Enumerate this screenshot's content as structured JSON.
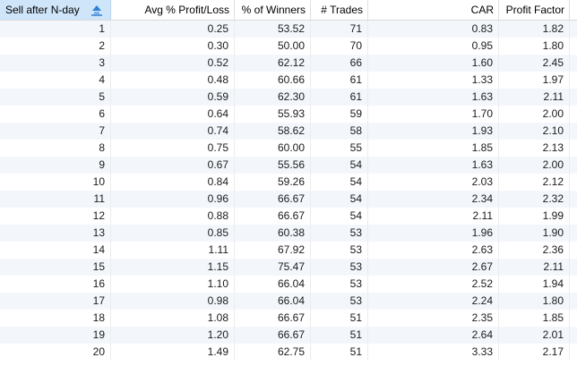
{
  "table": {
    "columns": [
      "Sell after N-day",
      "Avg % Profit/Loss",
      "% of Winners",
      "# Trades",
      "CAR",
      "Profit Factor"
    ],
    "rows": [
      [
        "1",
        "0.25",
        "53.52",
        "71",
        "0.83",
        "1.82"
      ],
      [
        "2",
        "0.30",
        "50.00",
        "70",
        "0.95",
        "1.80"
      ],
      [
        "3",
        "0.52",
        "62.12",
        "66",
        "1.60",
        "2.45"
      ],
      [
        "4",
        "0.48",
        "60.66",
        "61",
        "1.33",
        "1.97"
      ],
      [
        "5",
        "0.59",
        "62.30",
        "61",
        "1.63",
        "2.11"
      ],
      [
        "6",
        "0.64",
        "55.93",
        "59",
        "1.70",
        "2.00"
      ],
      [
        "7",
        "0.74",
        "58.62",
        "58",
        "1.93",
        "2.10"
      ],
      [
        "8",
        "0.75",
        "60.00",
        "55",
        "1.85",
        "2.13"
      ],
      [
        "9",
        "0.67",
        "55.56",
        "54",
        "1.63",
        "2.00"
      ],
      [
        "10",
        "0.84",
        "59.26",
        "54",
        "2.03",
        "2.12"
      ],
      [
        "11",
        "0.96",
        "66.67",
        "54",
        "2.34",
        "2.32"
      ],
      [
        "12",
        "0.88",
        "66.67",
        "54",
        "2.11",
        "1.99"
      ],
      [
        "13",
        "0.85",
        "60.38",
        "53",
        "1.96",
        "1.90"
      ],
      [
        "14",
        "1.11",
        "67.92",
        "53",
        "2.63",
        "2.36"
      ],
      [
        "15",
        "1.15",
        "75.47",
        "53",
        "2.67",
        "2.11"
      ],
      [
        "16",
        "1.10",
        "66.04",
        "53",
        "2.52",
        "1.94"
      ],
      [
        "17",
        "0.98",
        "66.04",
        "53",
        "2.24",
        "1.80"
      ],
      [
        "18",
        "1.08",
        "66.67",
        "51",
        "2.35",
        "1.85"
      ],
      [
        "19",
        "1.20",
        "66.67",
        "51",
        "2.64",
        "2.01"
      ],
      [
        "20",
        "1.49",
        "62.75",
        "51",
        "3.33",
        "2.17"
      ]
    ]
  },
  "sort_icon": "sort-ascending-icon",
  "colors": {
    "sorted_header_bg": "#cfe5f9",
    "alt_row_bg": "#f3f7fc",
    "sort_icon_blue": "#2f7fd6"
  }
}
